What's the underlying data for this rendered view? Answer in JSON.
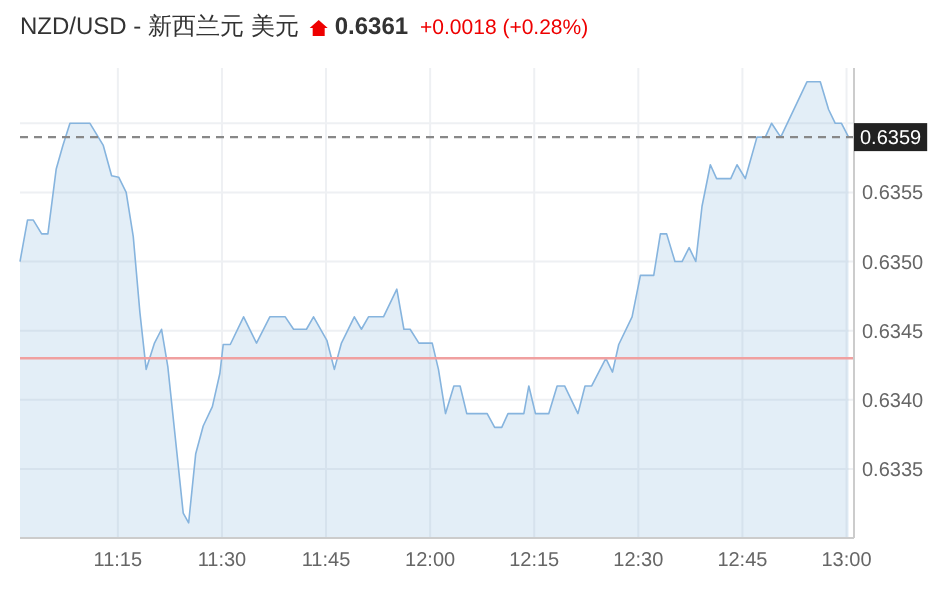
{
  "chart_data": {
    "type": "area",
    "title": "NZD/USD - 新西兰元 美元",
    "annotations": [
      "0.6361",
      "+0.0018 (+0.28%)"
    ],
    "x": [
      11.015,
      11.033,
      11.047,
      11.067,
      11.082,
      11.102,
      11.118,
      11.135,
      11.183,
      11.215,
      11.235,
      11.252,
      11.27,
      11.287,
      11.303,
      11.318,
      11.338,
      11.355,
      11.37,
      11.392,
      11.407,
      11.42,
      11.437,
      11.455,
      11.477,
      11.495,
      11.503,
      11.52,
      11.552,
      11.583,
      11.615,
      11.652,
      11.672,
      11.703,
      11.72,
      11.752,
      11.77,
      11.787,
      11.818,
      11.835,
      11.852,
      11.888,
      11.92,
      11.937,
      11.952,
      11.973,
      12.005,
      12.02,
      12.037,
      12.057,
      12.072,
      12.088,
      12.137,
      12.155,
      12.172,
      12.187,
      12.225,
      12.237,
      12.253,
      12.285,
      12.305,
      12.323,
      12.355,
      12.372,
      12.388,
      12.422,
      12.438,
      12.453,
      12.485,
      12.505,
      12.537,
      12.553,
      12.568,
      12.588,
      12.605,
      12.622,
      12.638,
      12.653,
      12.673,
      12.688,
      12.722,
      12.737,
      12.757,
      12.785,
      12.805,
      12.82,
      12.842,
      12.905,
      12.937,
      12.957,
      12.973,
      12.988,
      13.005
    ],
    "series": [
      {
        "color": "#86b4de",
        "values": [
          0.635,
          0.6353,
          0.6353,
          0.6352,
          0.6352,
          0.63567,
          0.63584,
          0.636,
          0.636,
          0.63584,
          0.63562,
          0.63561,
          0.6355,
          0.63518,
          0.63463,
          0.63422,
          0.63441,
          0.63451,
          0.63424,
          0.63361,
          0.63318,
          0.63311,
          0.63361,
          0.63381,
          0.63395,
          0.63419,
          0.6344,
          0.6344,
          0.6346,
          0.63441,
          0.6346,
          0.6346,
          0.63451,
          0.63451,
          0.6346,
          0.63443,
          0.63422,
          0.63441,
          0.6346,
          0.63451,
          0.6346,
          0.6346,
          0.6348,
          0.63451,
          0.63451,
          0.63441,
          0.63441,
          0.63422,
          0.6339,
          0.6341,
          0.6341,
          0.6339,
          0.6339,
          0.6338,
          0.6338,
          0.6339,
          0.6339,
          0.6341,
          0.6339,
          0.6339,
          0.6341,
          0.6341,
          0.6339,
          0.6341,
          0.6341,
          0.6343,
          0.6342,
          0.6344,
          0.6346,
          0.6349,
          0.6349,
          0.6352,
          0.6352,
          0.635,
          0.635,
          0.6351,
          0.635,
          0.6354,
          0.6357,
          0.6356,
          0.6356,
          0.6357,
          0.6356,
          0.6359,
          0.6359,
          0.636,
          0.6359,
          0.6363,
          0.6363,
          0.6361,
          0.636,
          0.636,
          0.6359
        ]
      }
    ],
    "xlim": [
      11.015,
      13.018
    ],
    "ylim": [
      0.633,
      0.6364
    ],
    "xticks": [
      {
        "value": 11.25,
        "label": "11:15"
      },
      {
        "value": 11.5,
        "label": "11:30"
      },
      {
        "value": 11.75,
        "label": "11:45"
      },
      {
        "value": 12.0,
        "label": "12:00"
      },
      {
        "value": 12.25,
        "label": "12:15"
      },
      {
        "value": 12.5,
        "label": "12:30"
      },
      {
        "value": 12.75,
        "label": "12:45"
      },
      {
        "value": 13.0,
        "label": "13:00"
      }
    ],
    "yticks": [
      0.6335,
      {
        "value": 0.634,
        "label": "0.6340"
      },
      0.6345,
      {
        "value": 0.635,
        "label": "0.6350"
      },
      0.6355,
      {
        "value": 0.636,
        "label": null
      }
    ],
    "ref_lines": [
      {
        "axis": "y",
        "value": 0.6359,
        "label": "0.6359",
        "color": "#888888",
        "line_style": "dashed"
      },
      {
        "axis": "y",
        "value": 0.6343,
        "label": null,
        "color": "#f0a0a0",
        "line_style": "solid"
      }
    ],
    "grid": true,
    "line_style": "solid"
  }
}
